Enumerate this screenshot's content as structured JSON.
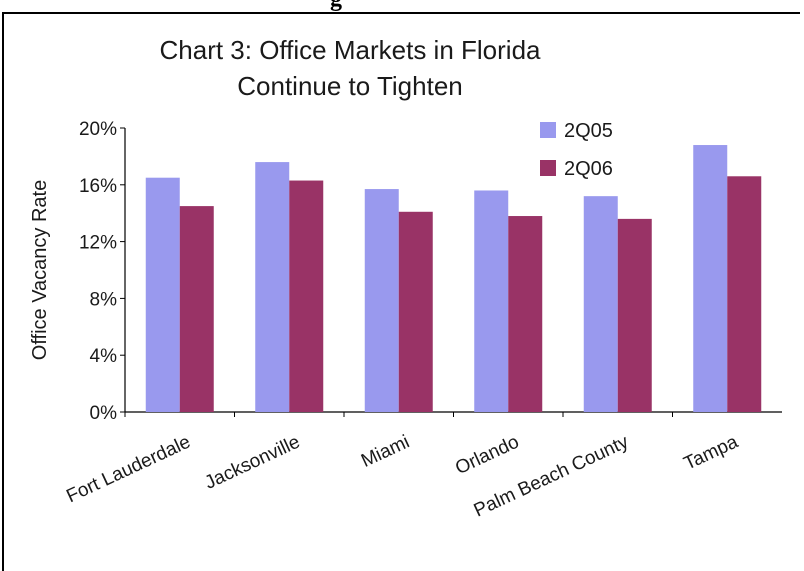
{
  "page": {
    "cropped_heading": "g"
  },
  "chart_data": {
    "type": "bar",
    "title_line1": "Chart 3: Office Markets in Florida",
    "title_line2": "Continue to Tighten",
    "ylabel": "Office Vacancy Rate",
    "xlabel": "",
    "ylim": [
      0,
      20
    ],
    "yticks": [
      "0%",
      "4%",
      "8%",
      "12%",
      "16%",
      "20%"
    ],
    "ytick_values": [
      0,
      4,
      8,
      12,
      16,
      20
    ],
    "categories": [
      "Fort Lauderdale",
      "Jacksonville",
      "Miami",
      "Orlando",
      "Palm Beach County",
      "Tampa"
    ],
    "series": [
      {
        "name": "2Q05",
        "color": "#9999ee",
        "values": [
          16.5,
          17.6,
          15.7,
          15.6,
          15.2,
          18.8
        ]
      },
      {
        "name": "2Q06",
        "color": "#993366",
        "values": [
          14.5,
          16.3,
          14.1,
          13.8,
          13.6,
          16.6
        ]
      }
    ],
    "legend_position": "top-right",
    "grid": false
  }
}
